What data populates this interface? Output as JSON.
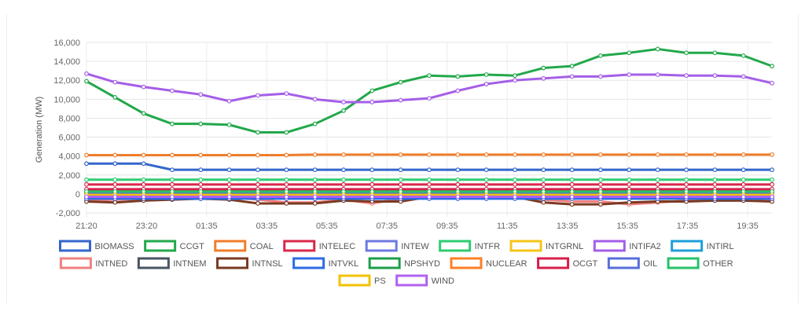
{
  "chart_data": {
    "type": "line",
    "title": "",
    "ylabel": "Generation (MW)",
    "xlabel": "",
    "ylim": [
      -2000,
      16000
    ],
    "yticks": [
      "16,000",
      "14,000",
      "12,000",
      "10,000",
      "8,000",
      "6,000",
      "4,000",
      "2,000",
      "0",
      "-2,000"
    ],
    "ytick_values": [
      16000,
      14000,
      12000,
      10000,
      8000,
      6000,
      4000,
      2000,
      0,
      -2000
    ],
    "x_ticks": [
      "21:20",
      "23:20",
      "01:35",
      "03:35",
      "05:35",
      "07:35",
      "09:35",
      "11:35",
      "13:35",
      "15:35",
      "17:35",
      "19:35"
    ],
    "x": [
      "21:20",
      "22:20",
      "23:20",
      "00:20",
      "01:35",
      "02:35",
      "03:35",
      "04:35",
      "05:35",
      "06:35",
      "07:35",
      "08:35",
      "09:35",
      "10:35",
      "11:35",
      "12:35",
      "13:35",
      "14:35",
      "15:35",
      "16:35",
      "17:35",
      "18:35",
      "19:35",
      "20:35",
      "21:15"
    ],
    "grid": true,
    "legend_position": "bottom",
    "series": [
      {
        "name": "BIOMASS",
        "color": "#3366cc",
        "values": [
          3200,
          3200,
          3200,
          2550,
          2550,
          2550,
          2550,
          2550,
          2550,
          2550,
          2550,
          2550,
          2550,
          2550,
          2550,
          2550,
          2550,
          2550,
          2550,
          2550,
          2550,
          2550,
          2550,
          2550,
          2550
        ]
      },
      {
        "name": "CCGT",
        "color": "#22a84a",
        "values": [
          11900,
          10200,
          8500,
          7400,
          7400,
          7300,
          6500,
          6500,
          7400,
          8800,
          10900,
          11800,
          12500,
          12400,
          12600,
          12500,
          13300,
          13500,
          14600,
          14900,
          15300,
          14900,
          14900,
          14600,
          13500
        ]
      },
      {
        "name": "COAL",
        "color": "#f07d2a",
        "values": [
          4100,
          4100,
          4100,
          4100,
          4100,
          4100,
          4100,
          4100,
          4150,
          4150,
          4150,
          4150,
          4150,
          4150,
          4150,
          4150,
          4150,
          4150,
          4150,
          4150,
          4150,
          4150,
          4150,
          4150,
          4150
        ]
      },
      {
        "name": "INTELEC",
        "color": "#d8284a",
        "values": [
          1000,
          1000,
          1000,
          1000,
          1000,
          1000,
          1000,
          1000,
          1000,
          1000,
          1000,
          1000,
          1000,
          1000,
          1000,
          1000,
          1000,
          1000,
          1000,
          1000,
          1000,
          1000,
          1000,
          1000,
          1000
        ]
      },
      {
        "name": "INTEW",
        "color": "#6c7ae0",
        "values": [
          -400,
          -400,
          -400,
          -400,
          -400,
          -400,
          -400,
          -400,
          -400,
          -400,
          -400,
          -400,
          -400,
          -400,
          -400,
          -400,
          -400,
          -400,
          -400,
          -400,
          -400,
          -400,
          -400,
          -400,
          -400
        ]
      },
      {
        "name": "INTFR",
        "color": "#2ecc71",
        "values": [
          1500,
          1500,
          1500,
          1500,
          1500,
          1500,
          1500,
          1500,
          1500,
          1500,
          1500,
          1500,
          1500,
          1500,
          1500,
          1500,
          1500,
          1500,
          1500,
          1500,
          1500,
          1500,
          1500,
          1500,
          1500
        ]
      },
      {
        "name": "INTGRNL",
        "color": "#f5c518",
        "values": [
          -300,
          -300,
          -300,
          -300,
          -300,
          -300,
          -300,
          -300,
          -300,
          -300,
          -300,
          -300,
          -300,
          -300,
          -300,
          -300,
          -300,
          -300,
          -300,
          -300,
          -300,
          -300,
          -300,
          -300,
          -300
        ]
      },
      {
        "name": "INTIFA2",
        "color": "#a55ee8",
        "values": [
          12700,
          11800,
          11300,
          10900,
          10500,
          9800,
          10400,
          10600,
          10000,
          9700,
          9700,
          9900,
          10100,
          10900,
          11600,
          12000,
          12200,
          12400,
          12400,
          12600,
          12600,
          12500,
          12500,
          12400,
          11700
        ]
      },
      {
        "name": "INTIRL",
        "color": "#1f9fd8",
        "values": [
          -200,
          -200,
          -200,
          -200,
          -200,
          -200,
          -200,
          -200,
          -200,
          -200,
          -200,
          -200,
          -200,
          -200,
          -200,
          -200,
          -200,
          -200,
          -200,
          -200,
          -200,
          -200,
          -200,
          -200,
          -200
        ]
      },
      {
        "name": "INTNED",
        "color": "#f08080",
        "values": [
          -700,
          -600,
          -500,
          -400,
          -300,
          -300,
          -600,
          -900,
          -900,
          -600,
          -1000,
          -500,
          -300,
          -300,
          -300,
          -300,
          -600,
          -800,
          -800,
          -1100,
          -900,
          -700,
          -600,
          -600,
          -600
        ]
      },
      {
        "name": "INTNEM",
        "color": "#4a5563",
        "values": [
          200,
          200,
          200,
          200,
          200,
          200,
          200,
          200,
          200,
          200,
          200,
          200,
          200,
          200,
          200,
          200,
          200,
          200,
          200,
          200,
          200,
          200,
          200,
          200,
          200
        ]
      },
      {
        "name": "INTNSL",
        "color": "#7a3a22",
        "values": [
          -800,
          -900,
          -700,
          -600,
          -500,
          -600,
          -1000,
          -1000,
          -1000,
          -700,
          -800,
          -800,
          -300,
          -300,
          -300,
          -300,
          -900,
          -1100,
          -1100,
          -900,
          -800,
          -800,
          -700,
          -700,
          -800
        ]
      },
      {
        "name": "INTVKL",
        "color": "#2e6be6",
        "values": [
          -500,
          -500,
          -500,
          -500,
          -500,
          -500,
          -500,
          -500,
          -500,
          -500,
          -500,
          -500,
          -500,
          -500,
          -500,
          -500,
          -500,
          -500,
          -500,
          -500,
          -500,
          -500,
          -500,
          -500,
          -500
        ]
      },
      {
        "name": "NPSHYD",
        "color": "#1e9e4a",
        "values": [
          300,
          300,
          300,
          300,
          300,
          300,
          300,
          300,
          300,
          300,
          300,
          300,
          300,
          300,
          300,
          300,
          300,
          300,
          300,
          300,
          300,
          300,
          300,
          300,
          300
        ]
      },
      {
        "name": "NUCLEAR",
        "color": "#ff7f27",
        "values": [
          0,
          0,
          0,
          0,
          0,
          0,
          0,
          0,
          0,
          0,
          0,
          0,
          0,
          0,
          0,
          0,
          0,
          0,
          0,
          0,
          0,
          0,
          0,
          0,
          0
        ]
      },
      {
        "name": "OCGT",
        "color": "#d81e4a",
        "values": [
          500,
          500,
          500,
          500,
          500,
          500,
          500,
          500,
          500,
          500,
          500,
          500,
          500,
          500,
          500,
          500,
          500,
          500,
          500,
          500,
          500,
          500,
          500,
          500,
          500
        ]
      },
      {
        "name": "OIL",
        "color": "#5a6edb",
        "values": [
          100,
          100,
          100,
          100,
          100,
          100,
          100,
          100,
          100,
          100,
          100,
          100,
          100,
          100,
          100,
          100,
          100,
          100,
          100,
          100,
          100,
          100,
          100,
          100,
          100
        ]
      },
      {
        "name": "OTHER",
        "color": "#27c26a",
        "values": [
          250,
          250,
          250,
          250,
          250,
          250,
          250,
          250,
          250,
          250,
          250,
          250,
          250,
          250,
          250,
          250,
          250,
          250,
          250,
          250,
          250,
          250,
          250,
          250,
          250
        ]
      },
      {
        "name": "PS",
        "color": "#f2c200",
        "values": [
          -100,
          -100,
          -100,
          -100,
          -100,
          -100,
          -100,
          -100,
          -100,
          -100,
          -100,
          -100,
          -100,
          -100,
          -100,
          -100,
          -100,
          -100,
          -100,
          -100,
          -100,
          -100,
          -100,
          -100,
          -100
        ]
      },
      {
        "name": "WIND",
        "color": "#b060f0",
        "values": [
          -300,
          -300,
          -300,
          -300,
          -300,
          -300,
          -300,
          -300,
          -300,
          -300,
          -300,
          -300,
          -300,
          -300,
          -300,
          -300,
          -300,
          -300,
          -300,
          -300,
          -300,
          -300,
          -300,
          -300,
          -300
        ]
      }
    ]
  }
}
